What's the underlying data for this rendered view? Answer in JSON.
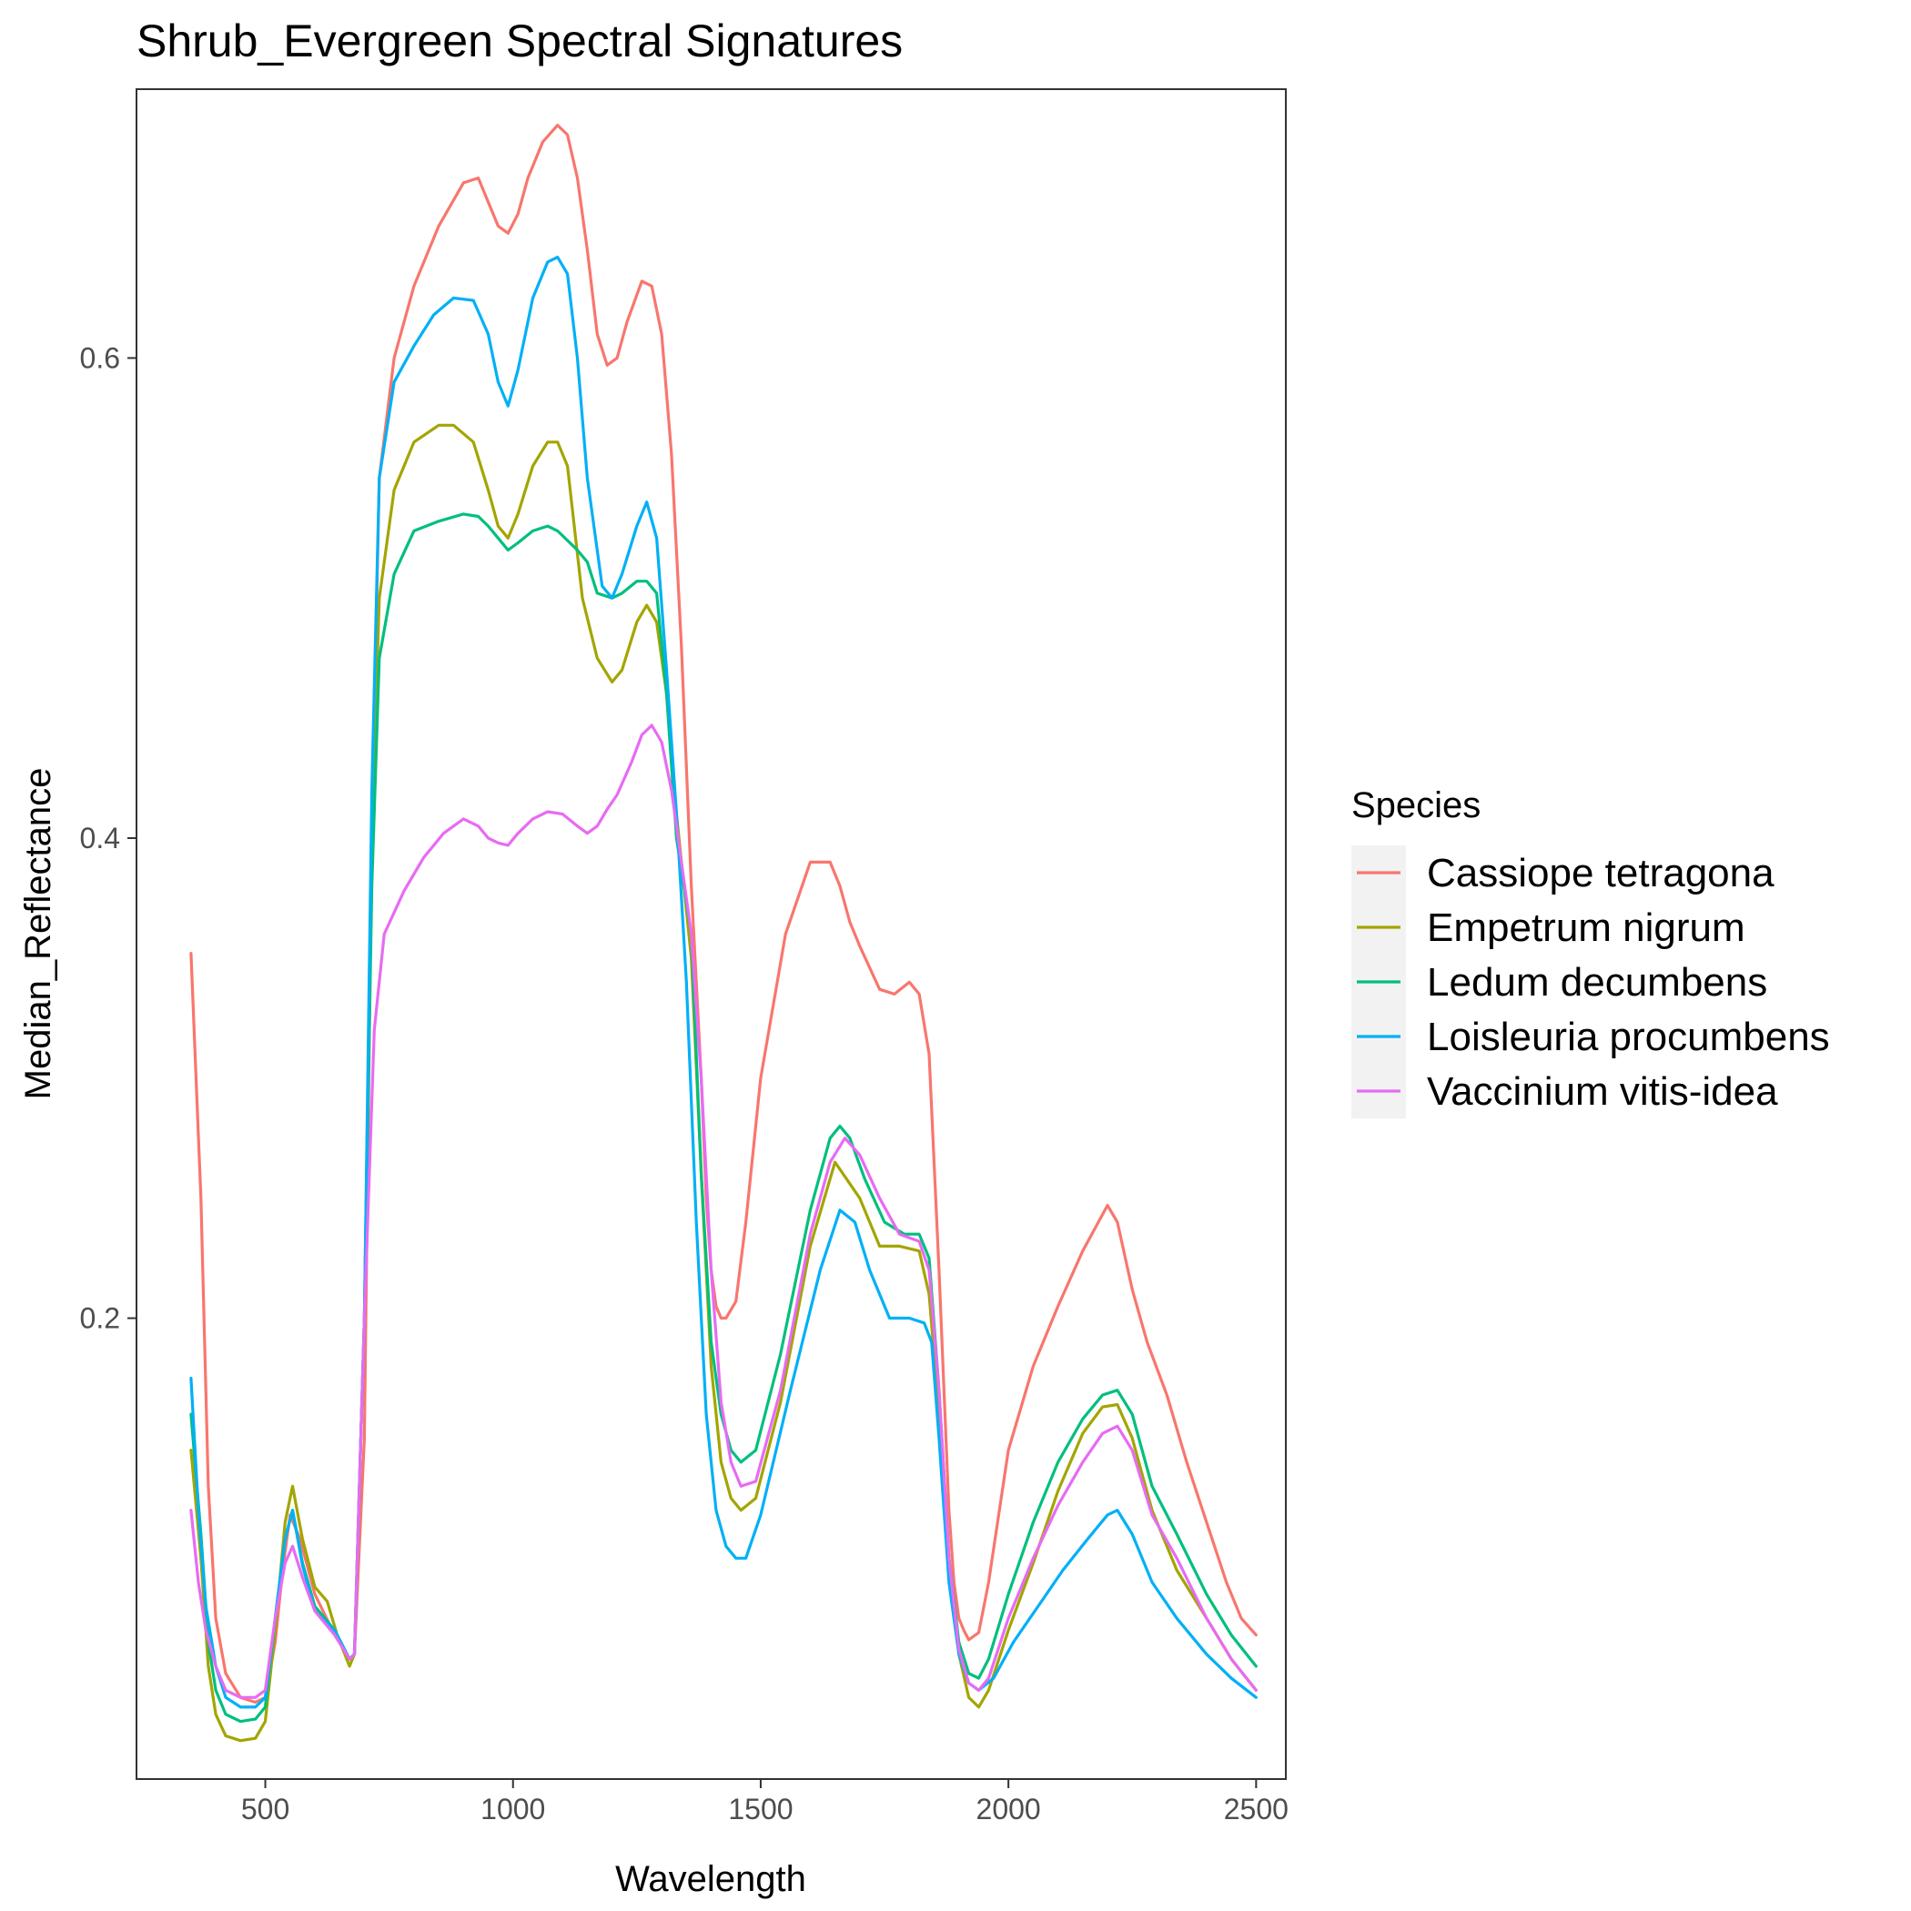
{
  "chart_data": {
    "type": "line",
    "title": "Shrub_Evergreen Spectral Signatures",
    "xlabel": "Wavelength",
    "ylabel": "Median_Reflectance",
    "xlim": [
      240,
      2560
    ],
    "ylim": [
      0.008,
      0.712
    ],
    "xticks": [
      500,
      1000,
      1500,
      2000,
      2500
    ],
    "yticks": [
      0.2,
      0.4,
      0.6
    ],
    "grid": false,
    "legend": {
      "title": "Species",
      "position": "right"
    },
    "series": [
      {
        "name": "Cassiope tetragona",
        "color": "#F8766D",
        "x": [
          350,
          370,
          385,
          400,
          420,
          450,
          480,
          500,
          520,
          535,
          550,
          570,
          600,
          640,
          670,
          680,
          700,
          715,
          730,
          760,
          800,
          850,
          900,
          930,
          950,
          970,
          990,
          1010,
          1030,
          1060,
          1090,
          1110,
          1130,
          1150,
          1170,
          1190,
          1210,
          1230,
          1260,
          1280,
          1300,
          1320,
          1340,
          1360,
          1380,
          1390,
          1400,
          1410,
          1420,
          1430,
          1450,
          1470,
          1500,
          1550,
          1600,
          1640,
          1660,
          1680,
          1700,
          1740,
          1770,
          1800,
          1820,
          1840,
          1860,
          1880,
          1890,
          1900,
          1910,
          1920,
          1940,
          1960,
          2000,
          2050,
          2100,
          2150,
          2200,
          2220,
          2250,
          2280,
          2320,
          2360,
          2400,
          2440,
          2470,
          2500
        ],
        "y": [
          0.352,
          0.25,
          0.13,
          0.075,
          0.052,
          0.042,
          0.04,
          0.042,
          0.065,
          0.095,
          0.118,
          0.108,
          0.085,
          0.068,
          0.058,
          0.06,
          0.15,
          0.4,
          0.55,
          0.6,
          0.63,
          0.655,
          0.673,
          0.675,
          0.665,
          0.655,
          0.652,
          0.66,
          0.675,
          0.69,
          0.697,
          0.693,
          0.675,
          0.645,
          0.61,
          0.597,
          0.6,
          0.615,
          0.632,
          0.63,
          0.61,
          0.56,
          0.48,
          0.38,
          0.3,
          0.25,
          0.22,
          0.205,
          0.2,
          0.2,
          0.207,
          0.24,
          0.3,
          0.36,
          0.39,
          0.39,
          0.38,
          0.365,
          0.355,
          0.337,
          0.335,
          0.34,
          0.335,
          0.31,
          0.22,
          0.12,
          0.09,
          0.075,
          0.07,
          0.066,
          0.069,
          0.09,
          0.145,
          0.18,
          0.205,
          0.228,
          0.247,
          0.24,
          0.212,
          0.19,
          0.168,
          0.14,
          0.115,
          0.09,
          0.075,
          0.068
        ]
      },
      {
        "name": "Empetrum nigrum",
        "color": "#A3A500",
        "x": [
          350,
          370,
          385,
          400,
          420,
          450,
          480,
          500,
          520,
          540,
          555,
          575,
          600,
          625,
          645,
          670,
          680,
          700,
          715,
          730,
          760,
          800,
          850,
          880,
          920,
          950,
          970,
          990,
          1010,
          1040,
          1070,
          1090,
          1110,
          1140,
          1170,
          1200,
          1220,
          1250,
          1270,
          1290,
          1310,
          1330,
          1360,
          1380,
          1400,
          1420,
          1440,
          1460,
          1490,
          1540,
          1600,
          1650,
          1700,
          1740,
          1780,
          1820,
          1840,
          1860,
          1880,
          1900,
          1920,
          1940,
          1960,
          2000,
          2050,
          2100,
          2150,
          2190,
          2220,
          2250,
          2290,
          2340,
          2400,
          2450,
          2500
        ],
        "y": [
          0.145,
          0.1,
          0.055,
          0.035,
          0.026,
          0.024,
          0.025,
          0.032,
          0.07,
          0.115,
          0.13,
          0.108,
          0.088,
          0.082,
          0.068,
          0.055,
          0.06,
          0.2,
          0.4,
          0.5,
          0.545,
          0.565,
          0.572,
          0.572,
          0.565,
          0.545,
          0.53,
          0.525,
          0.535,
          0.555,
          0.565,
          0.565,
          0.555,
          0.5,
          0.475,
          0.465,
          0.47,
          0.49,
          0.497,
          0.49,
          0.46,
          0.41,
          0.35,
          0.26,
          0.18,
          0.14,
          0.125,
          0.12,
          0.125,
          0.165,
          0.23,
          0.265,
          0.25,
          0.23,
          0.23,
          0.228,
          0.21,
          0.16,
          0.1,
          0.06,
          0.042,
          0.038,
          0.045,
          0.07,
          0.098,
          0.128,
          0.152,
          0.163,
          0.164,
          0.15,
          0.12,
          0.095,
          0.075,
          0.058,
          0.045
        ]
      },
      {
        "name": "Ledum decumbens",
        "color": "#00BF7D",
        "x": [
          350,
          370,
          385,
          400,
          420,
          450,
          480,
          500,
          520,
          540,
          555,
          575,
          600,
          640,
          670,
          680,
          700,
          715,
          730,
          760,
          800,
          850,
          900,
          930,
          950,
          970,
          990,
          1010,
          1040,
          1070,
          1090,
          1110,
          1130,
          1150,
          1170,
          1200,
          1220,
          1250,
          1270,
          1290,
          1310,
          1330,
          1360,
          1380,
          1400,
          1420,
          1440,
          1460,
          1490,
          1540,
          1600,
          1640,
          1660,
          1680,
          1710,
          1750,
          1790,
          1820,
          1840,
          1860,
          1880,
          1900,
          1920,
          1940,
          1960,
          2000,
          2050,
          2100,
          2150,
          2190,
          2220,
          2250,
          2290,
          2340,
          2400,
          2450,
          2500
        ],
        "y": [
          0.16,
          0.11,
          0.065,
          0.045,
          0.035,
          0.032,
          0.033,
          0.038,
          0.075,
          0.108,
          0.12,
          0.098,
          0.08,
          0.07,
          0.058,
          0.06,
          0.2,
          0.38,
          0.475,
          0.51,
          0.528,
          0.532,
          0.535,
          0.534,
          0.53,
          0.525,
          0.52,
          0.523,
          0.528,
          0.53,
          0.528,
          0.524,
          0.52,
          0.515,
          0.502,
          0.5,
          0.502,
          0.507,
          0.507,
          0.502,
          0.46,
          0.4,
          0.36,
          0.26,
          0.19,
          0.16,
          0.145,
          0.14,
          0.145,
          0.185,
          0.245,
          0.275,
          0.28,
          0.275,
          0.258,
          0.24,
          0.235,
          0.235,
          0.225,
          0.17,
          0.1,
          0.065,
          0.052,
          0.05,
          0.058,
          0.085,
          0.115,
          0.14,
          0.158,
          0.168,
          0.17,
          0.16,
          0.13,
          0.11,
          0.085,
          0.068,
          0.055
        ]
      },
      {
        "name": "Loisleuria procumbens",
        "color": "#00B0F6",
        "x": [
          350,
          365,
          380,
          400,
          420,
          450,
          480,
          500,
          520,
          540,
          555,
          575,
          600,
          640,
          670,
          680,
          700,
          715,
          730,
          760,
          800,
          840,
          880,
          920,
          950,
          970,
          990,
          1010,
          1040,
          1070,
          1090,
          1110,
          1130,
          1150,
          1180,
          1200,
          1220,
          1250,
          1270,
          1290,
          1310,
          1330,
          1350,
          1370,
          1390,
          1410,
          1430,
          1450,
          1470,
          1500,
          1560,
          1620,
          1660,
          1690,
          1720,
          1760,
          1800,
          1830,
          1845,
          1860,
          1880,
          1900,
          1920,
          1940,
          1970,
          2010,
          2060,
          2110,
          2160,
          2200,
          2220,
          2250,
          2290,
          2340,
          2400,
          2450,
          2500
        ],
        "y": [
          0.175,
          0.12,
          0.08,
          0.055,
          0.042,
          0.038,
          0.038,
          0.042,
          0.075,
          0.108,
          0.12,
          0.097,
          0.078,
          0.07,
          0.058,
          0.06,
          0.2,
          0.42,
          0.55,
          0.59,
          0.605,
          0.618,
          0.625,
          0.624,
          0.61,
          0.59,
          0.58,
          0.595,
          0.625,
          0.64,
          0.642,
          0.635,
          0.6,
          0.55,
          0.505,
          0.5,
          0.51,
          0.53,
          0.54,
          0.525,
          0.47,
          0.41,
          0.34,
          0.24,
          0.16,
          0.12,
          0.105,
          0.1,
          0.1,
          0.118,
          0.17,
          0.22,
          0.245,
          0.24,
          0.22,
          0.2,
          0.2,
          0.198,
          0.19,
          0.15,
          0.09,
          0.06,
          0.048,
          0.045,
          0.05,
          0.065,
          0.08,
          0.095,
          0.108,
          0.118,
          0.12,
          0.11,
          0.09,
          0.075,
          0.06,
          0.05,
          0.042
        ]
      },
      {
        "name": "Vaccinium vitis-idea",
        "color": "#E76BF3",
        "x": [
          350,
          365,
          380,
          400,
          420,
          450,
          480,
          500,
          520,
          540,
          555,
          575,
          600,
          640,
          670,
          680,
          700,
          720,
          740,
          780,
          820,
          860,
          900,
          930,
          950,
          970,
          990,
          1010,
          1040,
          1070,
          1100,
          1130,
          1150,
          1170,
          1190,
          1210,
          1240,
          1260,
          1280,
          1300,
          1320,
          1340,
          1360,
          1380,
          1400,
          1420,
          1440,
          1460,
          1490,
          1540,
          1600,
          1640,
          1670,
          1700,
          1740,
          1780,
          1820,
          1840,
          1860,
          1880,
          1900,
          1920,
          1940,
          1960,
          2000,
          2050,
          2100,
          2150,
          2190,
          2220,
          2250,
          2290,
          2340,
          2400,
          2450,
          2500
        ],
        "y": [
          0.12,
          0.09,
          0.07,
          0.055,
          0.045,
          0.042,
          0.042,
          0.045,
          0.075,
          0.098,
          0.105,
          0.092,
          0.078,
          0.068,
          0.058,
          0.06,
          0.2,
          0.32,
          0.36,
          0.378,
          0.392,
          0.402,
          0.408,
          0.405,
          0.4,
          0.398,
          0.397,
          0.402,
          0.408,
          0.411,
          0.41,
          0.405,
          0.402,
          0.405,
          0.412,
          0.418,
          0.432,
          0.443,
          0.447,
          0.44,
          0.42,
          0.39,
          0.36,
          0.3,
          0.22,
          0.165,
          0.14,
          0.13,
          0.132,
          0.17,
          0.235,
          0.265,
          0.275,
          0.268,
          0.25,
          0.235,
          0.232,
          0.22,
          0.17,
          0.1,
          0.062,
          0.048,
          0.045,
          0.05,
          0.075,
          0.1,
          0.122,
          0.14,
          0.152,
          0.155,
          0.145,
          0.118,
          0.1,
          0.075,
          0.058,
          0.045
        ]
      }
    ]
  }
}
